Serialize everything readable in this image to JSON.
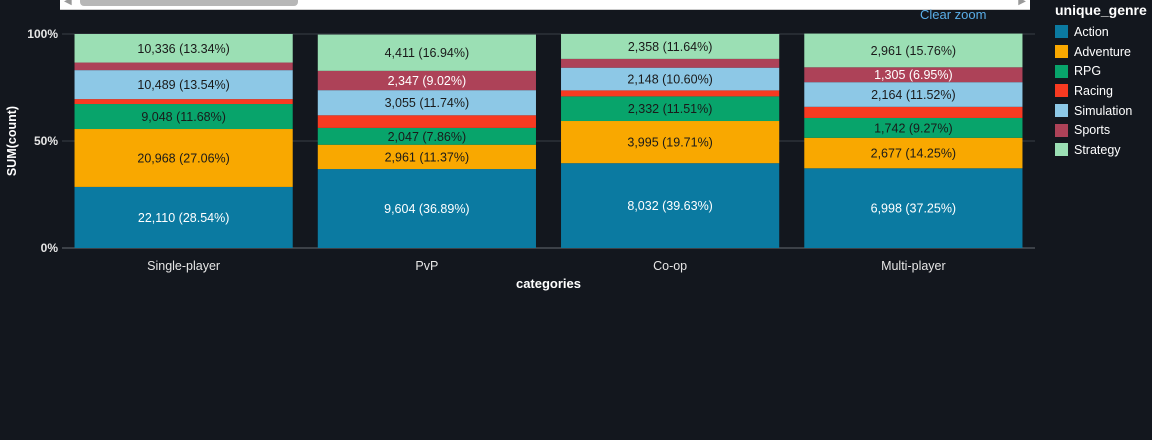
{
  "toolbar": {
    "clear_zoom_label": "Clear zoom"
  },
  "legend": {
    "title": "unique_genre",
    "items": [
      {
        "label": "Action",
        "color": "#0b7aa1"
      },
      {
        "label": "Adventure",
        "color": "#f9a800"
      },
      {
        "label": "RPG",
        "color": "#08a46b"
      },
      {
        "label": "Racing",
        "color": "#f83a21"
      },
      {
        "label": "Simulation",
        "color": "#8dc8e6"
      },
      {
        "label": "Sports",
        "color": "#ad4258"
      },
      {
        "label": "Strategy",
        "color": "#9bdfb4"
      }
    ]
  },
  "chart_data": {
    "type": "bar",
    "stacked": true,
    "normalized": "percent",
    "title": "",
    "xlabel": "categories",
    "ylabel": "SUM(count)",
    "ylim": [
      0,
      100
    ],
    "yticks": [
      "0%",
      "50%",
      "100%"
    ],
    "categories": [
      "Single-player",
      "PvP",
      "Co-op",
      "Multi-player"
    ],
    "series": [
      {
        "name": "Action",
        "color": "#0b7aa1",
        "values": [
          22110,
          9604,
          8032,
          6998
        ],
        "percents": [
          28.54,
          36.89,
          39.63,
          37.25
        ],
        "labels": [
          "22,110 (28.54%)",
          "9,604 (36.89%)",
          "8,032 (39.63%)",
          "6,998 (37.25%)"
        ]
      },
      {
        "name": "Adventure",
        "color": "#f9a800",
        "values": [
          20968,
          2961,
          3995,
          2677
        ],
        "percents": [
          27.06,
          11.37,
          19.71,
          14.25
        ],
        "labels": [
          "20,968 (27.06%)",
          "2,961 (11.37%)",
          "3,995 (19.71%)",
          "2,677 (14.25%)"
        ]
      },
      {
        "name": "RPG",
        "color": "#08a46b",
        "values": [
          9048,
          2047,
          2332,
          1742
        ],
        "percents": [
          11.68,
          7.86,
          11.51,
          9.27
        ],
        "labels": [
          "9,048 (11.68%)",
          "2,047 (7.86%)",
          "2,332 (11.51%)",
          "1,742 (9.27%)"
        ]
      },
      {
        "name": "Racing",
        "color": "#f83a21",
        "values": [
          null,
          null,
          null,
          null
        ],
        "percents": [
          2.3,
          5.9,
          2.8,
          5.2
        ],
        "labels": [
          "",
          "",
          "",
          ""
        ]
      },
      {
        "name": "Simulation",
        "color": "#8dc8e6",
        "values": [
          10489,
          3055,
          2148,
          2164
        ],
        "percents": [
          13.54,
          11.74,
          10.6,
          11.52
        ],
        "labels": [
          "10,489 (13.54%)",
          "3,055 (11.74%)",
          "2,148 (10.60%)",
          "2,164 (11.52%)"
        ]
      },
      {
        "name": "Sports",
        "color": "#ad4258",
        "values": [
          null,
          2347,
          null,
          1305
        ],
        "percents": [
          3.54,
          9.02,
          4.12,
          6.95
        ],
        "labels": [
          "",
          "2,347 (9.02%)",
          "",
          "1,305 (6.95%)"
        ]
      },
      {
        "name": "Strategy",
        "color": "#9bdfb4",
        "values": [
          10336,
          4411,
          2358,
          2961
        ],
        "percents": [
          13.34,
          16.94,
          11.64,
          15.76
        ],
        "labels": [
          "10,336 (13.34%)",
          "4,411 (16.94%)",
          "2,358 (11.64%)",
          "2,961 (15.76%)"
        ]
      }
    ]
  }
}
